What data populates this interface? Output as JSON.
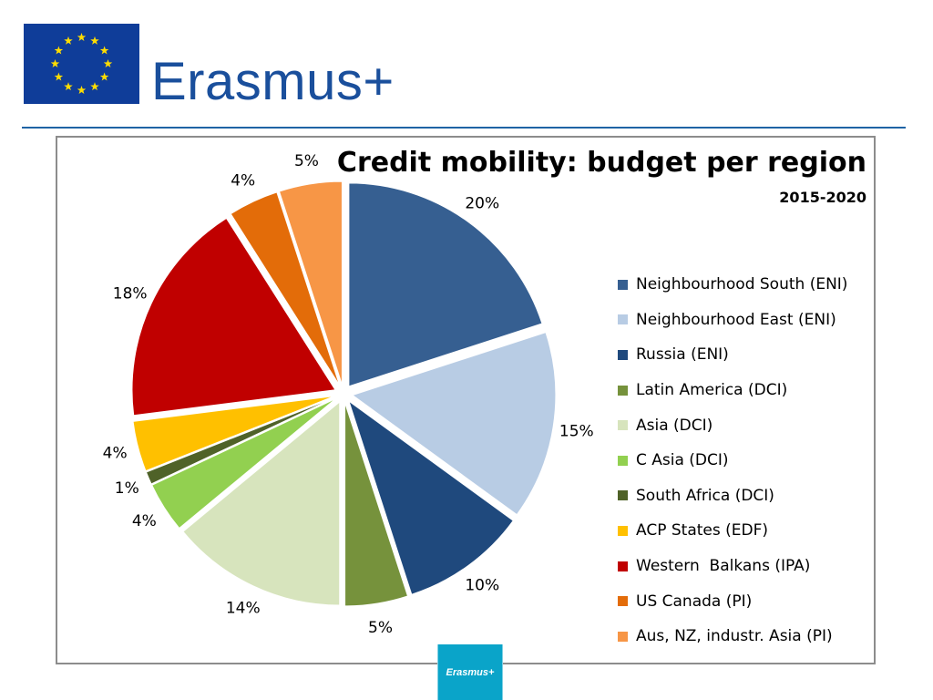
{
  "header": {
    "brand": "Erasmus+",
    "flag_icon": "eu-flag-icon"
  },
  "chart_data": {
    "type": "pie",
    "title": "Credit mobility: budget per region",
    "subtitle": "2015-2020",
    "slices": [
      {
        "label": "Neighbourhood South (ENI)",
        "value": 20,
        "display": "20%",
        "color": "#365f91"
      },
      {
        "label": "Neighbourhood East (ENI)",
        "value": 15,
        "display": "15%",
        "color": "#b8cce4"
      },
      {
        "label": "Russia (ENI)",
        "value": 10,
        "display": "10%",
        "color": "#1f497d"
      },
      {
        "label": "Latin America (DCI)",
        "value": 5,
        "display": "5%",
        "color": "#76923c"
      },
      {
        "label": "Asia (DCI)",
        "value": 14,
        "display": "14%",
        "color": "#d7e4bd"
      },
      {
        "label": "C Asia (DCI)",
        "value": 4,
        "display": "4%",
        "color": "#92d050"
      },
      {
        "label": "South Africa (DCI)",
        "value": 1,
        "display": "1%",
        "color": "#4f6228"
      },
      {
        "label": "ACP States (EDF)",
        "value": 4,
        "display": "4%",
        "color": "#ffc000"
      },
      {
        "label": "Western  Balkans (IPA)",
        "value": 18,
        "display": "18%",
        "color": "#c00000"
      },
      {
        "label": "US Canada (PI)",
        "value": 4,
        "display": "4%",
        "color": "#e36c09"
      },
      {
        "label": "Aus, NZ, industr. Asia (PI)",
        "value": 5,
        "display": "5%",
        "color": "#f79646"
      }
    ],
    "legend_position": "right"
  },
  "footer": {
    "badge_text": "Erasmus+"
  }
}
